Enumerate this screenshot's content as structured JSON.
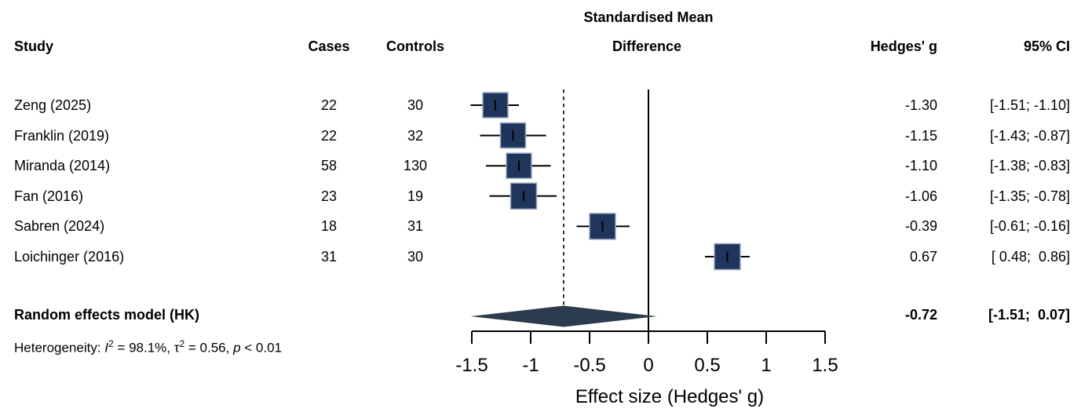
{
  "chart_data": {
    "type": "forest",
    "title_line1": "Standardised Mean",
    "title_line2": "Difference",
    "columns": {
      "study": "Study",
      "cases": "Cases",
      "controls": "Controls",
      "hedges_g": "Hedges' g",
      "ci": "95% CI"
    },
    "xlabel": "Effect size (Hedges' g)",
    "xlim": [
      -1.5,
      1.5
    ],
    "x_ticks": [
      -1.5,
      -1,
      -0.5,
      0,
      0.5,
      1,
      1.5
    ],
    "x_tick_labels": [
      "-1.5",
      "-1",
      "-0.5",
      "0",
      "0.5",
      "1",
      "1.5"
    ],
    "zero_reference_line": 0,
    "studies": [
      {
        "study": "Zeng (2025)",
        "cases": "22",
        "controls": "30",
        "g": -1.3,
        "lo": -1.51,
        "hi": -1.1,
        "g_text": "-1.30",
        "ci_text": "[-1.51; -1.10]",
        "size": 32
      },
      {
        "study": "Franklin (2019)",
        "cases": "22",
        "controls": "32",
        "g": -1.15,
        "lo": -1.43,
        "hi": -0.87,
        "g_text": "-1.15",
        "ci_text": "[-1.43; -0.87]",
        "size": 32
      },
      {
        "study": "Miranda (2014)",
        "cases": "58",
        "controls": "130",
        "g": -1.1,
        "lo": -1.38,
        "hi": -0.83,
        "g_text": "-1.10",
        "ci_text": "[-1.38; -0.83]",
        "size": 32
      },
      {
        "study": "Fan (2016)",
        "cases": "23",
        "controls": "19",
        "g": -1.06,
        "lo": -1.35,
        "hi": -0.78,
        "g_text": "-1.06",
        "ci_text": "[-1.35; -0.78]",
        "size": 33
      },
      {
        "study": "Sabren (2024)",
        "cases": "18",
        "controls": "31",
        "g": -0.39,
        "lo": -0.61,
        "hi": -0.16,
        "g_text": "-0.39",
        "ci_text": "[-0.61; -0.16]",
        "size": 33
      },
      {
        "study": "Loichinger (2016)",
        "cases": "31",
        "controls": "30",
        "g": 0.67,
        "lo": 0.48,
        "hi": 0.86,
        "g_text": "0.67",
        "ci_text": "[ 0.48;  0.86]",
        "size": 33
      }
    ],
    "pooled": {
      "label": "Random effects model (HK)",
      "g": -0.72,
      "lo": -1.51,
      "hi": 0.07,
      "g_text": "-0.72",
      "ci_text": "[-1.51;  0.07]"
    },
    "heterogeneity": {
      "prefix": "Heterogeneity: ",
      "i_label": "I",
      "i_sup": "2",
      "i_rest": " = 98.1%, ",
      "tau_label": "τ",
      "tau_sup": "2",
      "tau_rest": " = 0.56, ",
      "p_label": "p",
      "p_rest": " < 0.01"
    }
  },
  "colors": {
    "square_fill": "#20355C",
    "square_border": "#97A6C0",
    "diamond_fill": "#2C3B4E",
    "line": "#000000"
  }
}
